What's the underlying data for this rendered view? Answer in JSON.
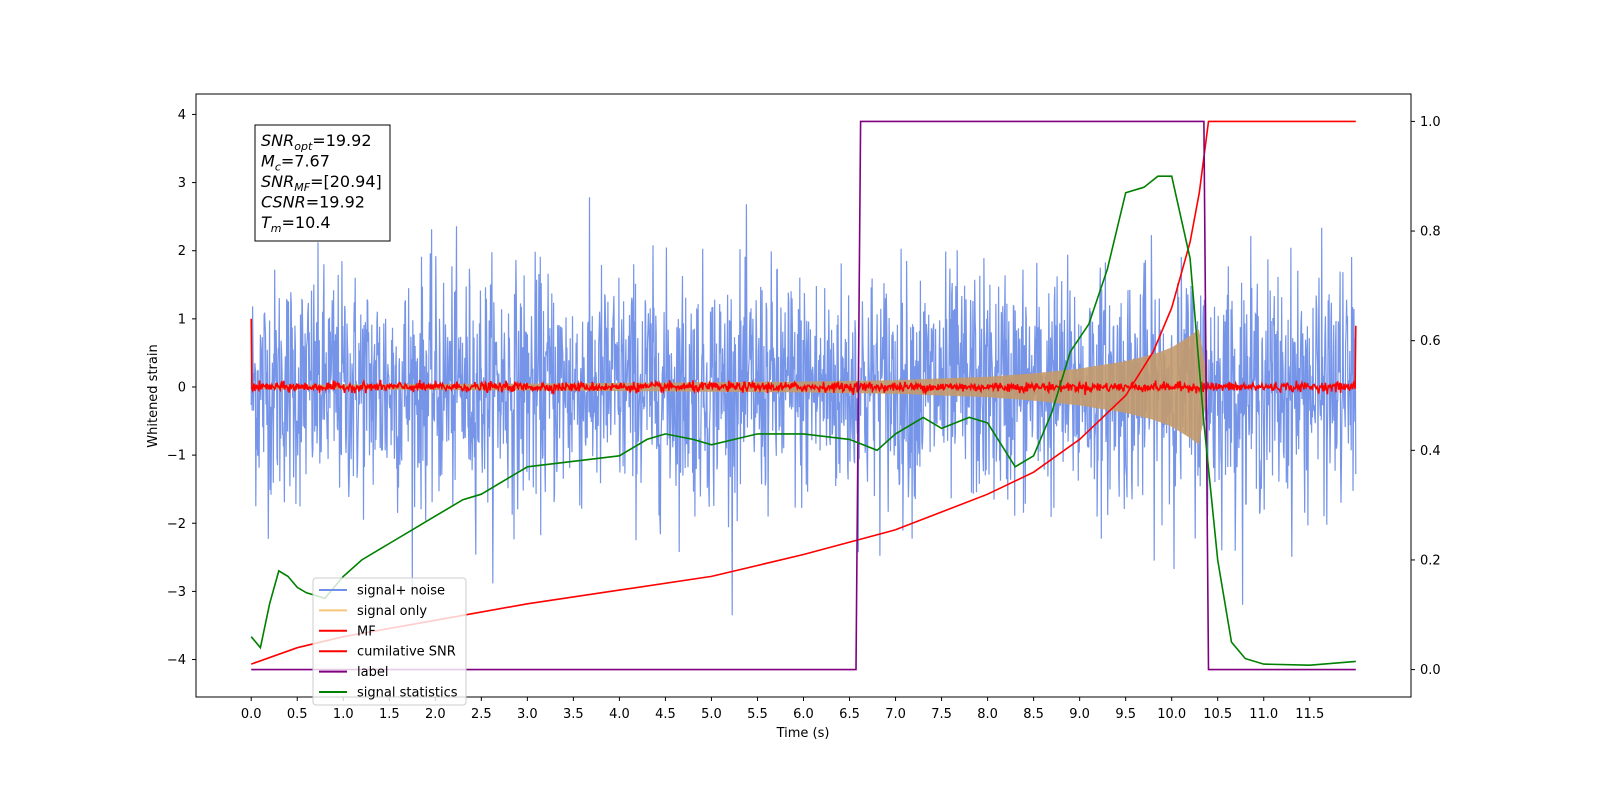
{
  "chart_data": {
    "type": "line",
    "xlabel": "Time (s)",
    "ylabel": "Whitened strain",
    "xlim": [
      -0.6,
      12.6
    ],
    "ylim": [
      -4.55,
      4.3
    ],
    "ylim_right": [
      -0.05,
      1.05
    ],
    "xticks": [
      0.0,
      0.5,
      1.0,
      1.5,
      2.0,
      2.5,
      3.0,
      3.5,
      4.0,
      4.5,
      5.0,
      5.5,
      6.0,
      6.5,
      7.0,
      7.5,
      8.0,
      8.5,
      9.0,
      9.5,
      10.0,
      10.5,
      11.0,
      11.5
    ],
    "xtick_labels": [
      "0.0",
      "0.5",
      "1.0",
      "1.5",
      "2.0",
      "2.5",
      "3.0",
      "3.5",
      "4.0",
      "4.5",
      "5.0",
      "5.5",
      "6.0",
      "6.5",
      "7.0",
      "7.5",
      "8.0",
      "8.5",
      "9.0",
      "9.5",
      "10.0",
      "10.5",
      "11.0",
      "11.5"
    ],
    "yticks_left": [
      4,
      3,
      2,
      1,
      0,
      -1,
      -2,
      -3,
      -4
    ],
    "ytick_labels_left": [
      "4",
      "3",
      "2",
      "1",
      "0",
      "−1",
      "−2",
      "−3",
      "−4"
    ],
    "yticks_right": [
      1.0,
      0.8,
      0.6,
      0.4,
      0.2,
      0.0
    ],
    "ytick_labels_right": [
      "1.0",
      "0.8",
      "0.6",
      "0.4",
      "0.2",
      "0.0"
    ],
    "annotation": {
      "lines": [
        {
          "base": "SNR",
          "sub": "opt",
          "value": "=19.92"
        },
        {
          "base": "M",
          "sub": "c",
          "value": "=7.67"
        },
        {
          "base": "SNR",
          "sub": "MF",
          "value": "=[20.94]"
        },
        {
          "base": "CSNR",
          "sub": "",
          "value": "=19.92"
        },
        {
          "base": "T",
          "sub": "m",
          "value": "=10.4"
        }
      ]
    },
    "legend": {
      "location": "lower left",
      "entries": [
        {
          "label": "signal+ noise",
          "color": "#6f8fe8"
        },
        {
          "label": "signal only",
          "color": "#f5c77a"
        },
        {
          "label": "MF",
          "color": "#ff0000"
        },
        {
          "label": "cumilative SNR",
          "color": "#ff0000"
        },
        {
          "label": "label",
          "color": "#800080"
        },
        {
          "label": "signal statistics",
          "color": "#008000"
        }
      ]
    },
    "series": [
      {
        "name": "signal+ noise",
        "axis": "left",
        "color": "#6f8fe8",
        "description_values": {
          "t_start": 0.0,
          "t_end": 12.0,
          "noise_sigma": 0.85,
          "max_abs": 3.35
        }
      },
      {
        "name": "signal only",
        "axis": "left",
        "color": "#c49a6c",
        "envelope": {
          "t": [
            0.0,
            3.0,
            6.0,
            7.0,
            8.0,
            8.5,
            9.0,
            9.5,
            9.8,
            10.0,
            10.2,
            10.3,
            10.4
          ],
          "amp": [
            0.03,
            0.05,
            0.08,
            0.1,
            0.15,
            0.2,
            0.27,
            0.38,
            0.48,
            0.58,
            0.75,
            0.85,
            0.0
          ]
        }
      },
      {
        "name": "MF",
        "axis": "left",
        "color": "#ff0000",
        "values": {
          "t_start": 0.0,
          "t_end": 12.0,
          "level": 0.0,
          "edge_value": 1.0
        }
      },
      {
        "name": "cumilative SNR",
        "axis": "right",
        "color": "#ff0000",
        "x": [
          0.0,
          0.5,
          1.0,
          2.0,
          3.0,
          4.0,
          5.0,
          6.0,
          7.0,
          8.0,
          8.5,
          9.0,
          9.5,
          9.8,
          10.0,
          10.2,
          10.3,
          10.4,
          12.0
        ],
        "y": [
          0.01,
          0.04,
          0.06,
          0.09,
          0.12,
          0.145,
          0.17,
          0.21,
          0.255,
          0.32,
          0.36,
          0.42,
          0.5,
          0.58,
          0.66,
          0.78,
          0.87,
          1.0,
          1.0
        ]
      },
      {
        "name": "label",
        "axis": "right",
        "color": "#800080",
        "x": [
          0.0,
          6.57,
          6.62,
          10.35,
          10.4,
          12.0
        ],
        "y": [
          0.0,
          0.0,
          1.0,
          1.0,
          0.0,
          0.0
        ]
      },
      {
        "name": "signal statistics",
        "axis": "right",
        "color": "#008000",
        "x": [
          0.0,
          0.1,
          0.2,
          0.3,
          0.4,
          0.5,
          0.6,
          0.8,
          1.0,
          1.2,
          1.5,
          1.8,
          2.0,
          2.3,
          2.5,
          2.8,
          3.0,
          3.5,
          4.0,
          4.3,
          4.5,
          4.8,
          5.0,
          5.5,
          6.0,
          6.5,
          6.8,
          7.0,
          7.3,
          7.5,
          7.8,
          8.0,
          8.3,
          8.5,
          8.7,
          8.9,
          9.1,
          9.3,
          9.5,
          9.7,
          9.85,
          10.0,
          10.2,
          10.35,
          10.5,
          10.65,
          10.8,
          11.0,
          11.5,
          12.0
        ],
        "y": [
          0.06,
          0.04,
          0.12,
          0.18,
          0.17,
          0.15,
          0.14,
          0.13,
          0.17,
          0.2,
          0.23,
          0.26,
          0.28,
          0.31,
          0.32,
          0.35,
          0.37,
          0.38,
          0.39,
          0.42,
          0.43,
          0.42,
          0.41,
          0.43,
          0.43,
          0.42,
          0.4,
          0.43,
          0.46,
          0.44,
          0.46,
          0.45,
          0.37,
          0.39,
          0.47,
          0.58,
          0.63,
          0.73,
          0.87,
          0.88,
          0.9,
          0.9,
          0.75,
          0.45,
          0.2,
          0.05,
          0.02,
          0.01,
          0.008,
          0.015
        ]
      }
    ]
  }
}
